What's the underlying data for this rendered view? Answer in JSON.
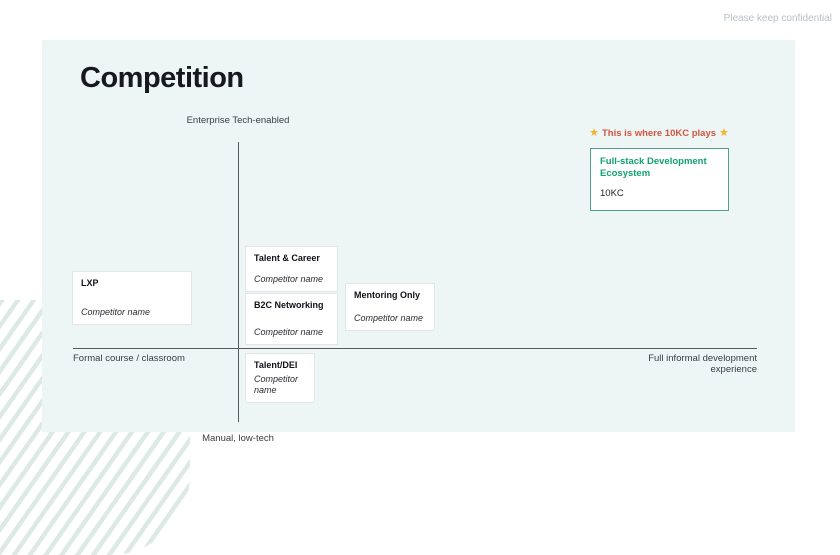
{
  "page": {
    "confidential_note": "Please keep confidential"
  },
  "slide": {
    "title": "Competition",
    "axes": {
      "top": "Enterprise Tech-enabled",
      "bottom": "Manual, low-tech",
      "left": "Formal course / classroom",
      "right": "Full informal development experience"
    },
    "callout": {
      "star_glyph": "★",
      "text": "This is where 10KC plays"
    },
    "highlight_box": {
      "title": "Full-stack Development Ecosystem",
      "name": "10KC"
    },
    "competitors": [
      {
        "id": "lxp",
        "title": "LXP",
        "name": "Competitor name"
      },
      {
        "id": "talent-career",
        "title": "Talent & Career",
        "name": "Competitor name"
      },
      {
        "id": "b2c-networking",
        "title": "B2C Networking",
        "name": "Competitor name"
      },
      {
        "id": "mentoring-only",
        "title": "Mentoring Only",
        "name": "Competitor name"
      },
      {
        "id": "talent-dei",
        "title": "Talent/DEI",
        "name": "Competitor name"
      }
    ],
    "colors": {
      "accent_green": "#12a173",
      "border_green": "#4f9f8b",
      "callout_text": "#d4553f",
      "star": "#f0b42f",
      "card_bg": "#edf5f5",
      "stripe": "#dde9e5"
    }
  }
}
